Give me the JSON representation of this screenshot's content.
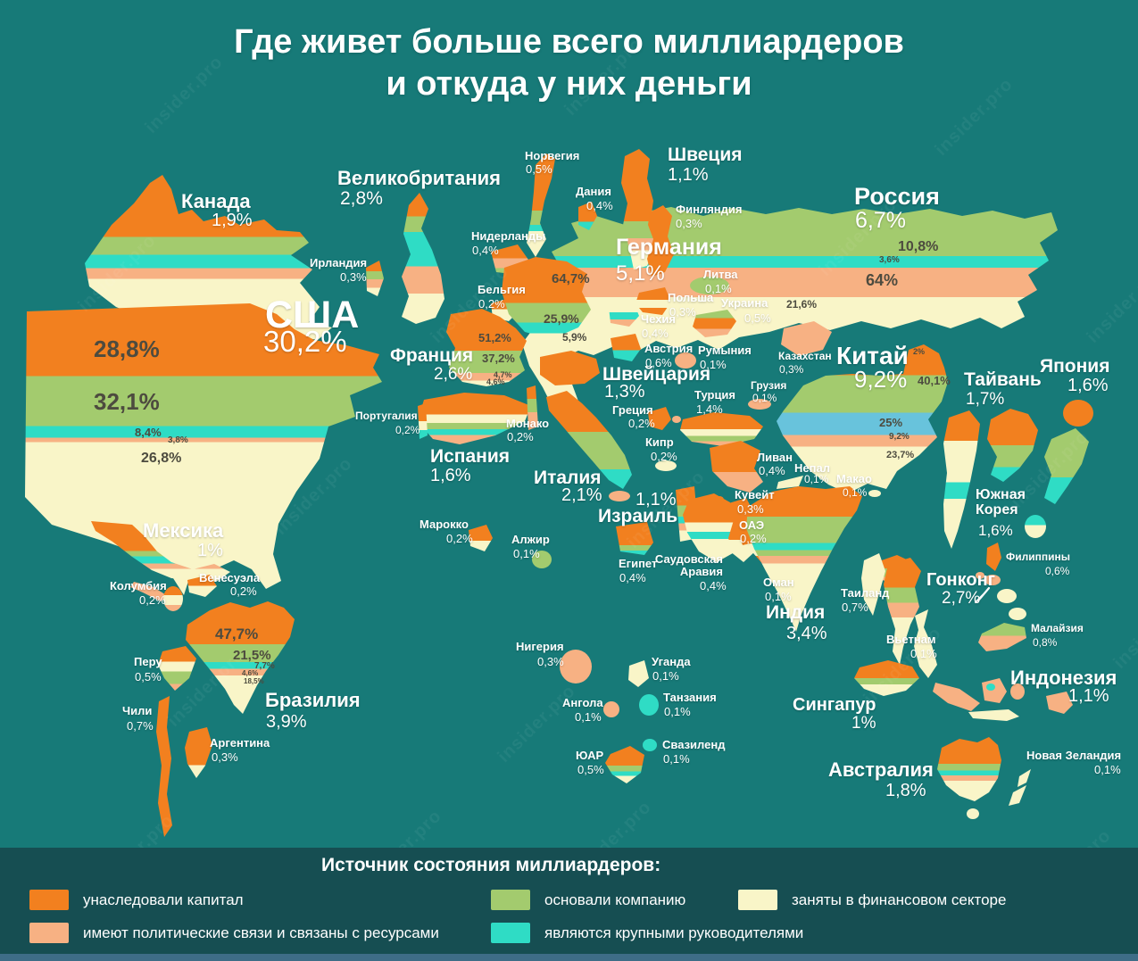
{
  "title": {
    "line1": "Где живет больше всего миллиардеров",
    "line2": "и откуда у них деньги"
  },
  "watermark": "insider.pro",
  "colors": {
    "background": "#177a78",
    "inherited": "#f2801f",
    "political": "#f7b183",
    "founded": "#a3cb6e",
    "executives": "#2fdcc5",
    "executives_blue": "#68c3dc",
    "finance": "#f9f5c8",
    "legend_band": "#164e52",
    "bottom_bar": "#3e6d87",
    "segment_text": "#4d4b3f"
  },
  "legend": {
    "title": "Источник состояния миллиардеров:",
    "items": [
      {
        "key": "inherited",
        "color": "#f2801f",
        "label": "унаследовали капитал"
      },
      {
        "key": "political",
        "color": "#f7b183",
        "label": "имеют политические связи и связаны с ресурсами"
      },
      {
        "key": "founded",
        "color": "#a3cb6e",
        "label": "основали компанию"
      },
      {
        "key": "executives",
        "color": "#2fdcc5",
        "label": "являются крупными руководителями"
      },
      {
        "key": "finance",
        "color": "#f9f5c8",
        "label": "заняты в финансовом секторе"
      }
    ]
  },
  "countries": [
    {
      "id": "canada",
      "name": "Канада",
      "value": "1,9%"
    },
    {
      "id": "usa",
      "name": "США",
      "value": "30,2%",
      "segments": [
        {
          "value": "28,8%",
          "source": "inherited"
        },
        {
          "value": "32,1%",
          "source": "founded"
        },
        {
          "value": "8,4%",
          "source": "executives"
        },
        {
          "value": "3,8%",
          "source": "political"
        },
        {
          "value": "26,8%",
          "source": "finance"
        }
      ]
    },
    {
      "id": "uk",
      "name": "Великобритания",
      "value": "2,8%"
    },
    {
      "id": "ireland",
      "name": "Ирландия",
      "value": "0,3%"
    },
    {
      "id": "norway",
      "name": "Норвегия",
      "value": "0,5%"
    },
    {
      "id": "denmark",
      "name": "Дания",
      "value": "0,4%"
    },
    {
      "id": "sweden",
      "name": "Швеция",
      "value": "1,1%"
    },
    {
      "id": "finland",
      "name": "Финляндия",
      "value": "0,3%"
    },
    {
      "id": "netherlands",
      "name": "Нидерланды",
      "value": "0,4%"
    },
    {
      "id": "belgium",
      "name": "Бельгия",
      "value": "0,2%"
    },
    {
      "id": "germany",
      "name": "Германия",
      "value": "5,1%",
      "segments": [
        {
          "value": "64,7%",
          "source": "inherited"
        },
        {
          "value": "25,9%",
          "source": "founded"
        },
        {
          "value": "5,9%",
          "source": "executives"
        }
      ]
    },
    {
      "id": "lithuania",
      "name": "Литва",
      "value": "0,1%"
    },
    {
      "id": "poland",
      "name": "Польша",
      "value": "0,3%"
    },
    {
      "id": "ukraine",
      "name": "Украина",
      "value": "0,5%"
    },
    {
      "id": "russia",
      "name": "Россия",
      "value": "6,7%",
      "segments": [
        {
          "value": "10,8%",
          "source": "founded"
        },
        {
          "value": "3,6%",
          "source": "executives"
        },
        {
          "value": "64%",
          "source": "political"
        },
        {
          "value": "21,6%",
          "source": "finance"
        }
      ]
    },
    {
      "id": "france",
      "name": "Франция",
      "value": "2,6%",
      "segments": [
        {
          "value": "51,2%",
          "source": "inherited"
        },
        {
          "value": "37,2%",
          "source": "founded"
        },
        {
          "value": "4,7%",
          "source": "political"
        },
        {
          "value": "4,6%",
          "source": "finance"
        }
      ]
    },
    {
      "id": "czech",
      "name": "Чехия",
      "value": "0,4%"
    },
    {
      "id": "austria",
      "name": "Австрия",
      "value": "0,6%"
    },
    {
      "id": "romania",
      "name": "Румыния",
      "value": "0,1%"
    },
    {
      "id": "kazakhstan",
      "name": "Казахстан",
      "value": "0,3%"
    },
    {
      "id": "china",
      "name": "Китай",
      "value": "9,2%",
      "segments": [
        {
          "value": "2%",
          "source": "inherited"
        },
        {
          "value": "40,1%",
          "source": "founded"
        },
        {
          "value": "25%",
          "source": "executives"
        },
        {
          "value": "9,2%",
          "source": "political"
        },
        {
          "value": "23,7%",
          "source": "finance"
        }
      ]
    },
    {
      "id": "japan",
      "name": "Япония",
      "value": "1,6%"
    },
    {
      "id": "taiwan",
      "name": "Тайвань",
      "value": "1,7%"
    },
    {
      "id": "switzerland",
      "name": "Швейцария",
      "value": "1,3%"
    },
    {
      "id": "turkey",
      "name": "Турция",
      "value": "1,4%"
    },
    {
      "id": "georgia",
      "name": "Грузия",
      "value": "0,1%"
    },
    {
      "id": "portugal",
      "name": "Португалия",
      "value": "0,2%"
    },
    {
      "id": "monaco",
      "name": "Монако",
      "value": "0,2%"
    },
    {
      "id": "greece",
      "name": "Греция",
      "value": "0,2%"
    },
    {
      "id": "cyprus",
      "name": "Кипр",
      "value": "0,2%"
    },
    {
      "id": "lebanon",
      "name": "Ливан",
      "value": "0,4%"
    },
    {
      "id": "nepal",
      "name": "Непал",
      "value": "0,1%"
    },
    {
      "id": "macao",
      "name": "Макао",
      "value": "0,1%"
    },
    {
      "id": "spain",
      "name": "Испания",
      "value": "1,6%"
    },
    {
      "id": "italy",
      "name": "Италия",
      "value": "2,1%"
    },
    {
      "id": "israel",
      "name": "Израиль",
      "value": "1,1%"
    },
    {
      "id": "kuwait",
      "name": "Кувейт",
      "value": "0,3%"
    },
    {
      "id": "uae",
      "name": "ОАЭ",
      "value": "0,2%"
    },
    {
      "id": "south-korea",
      "name": "Южная Корея",
      "value": "1,6%"
    },
    {
      "id": "morocco",
      "name": "Марокко",
      "value": "0,2%"
    },
    {
      "id": "algeria",
      "name": "Алжир",
      "value": "0,1%"
    },
    {
      "id": "egypt",
      "name": "Египет",
      "value": "0,4%"
    },
    {
      "id": "saudi-arabia",
      "name": "Саудовская Аравия",
      "value": "0,4%"
    },
    {
      "id": "oman",
      "name": "Оман",
      "value": "0,1%"
    },
    {
      "id": "thailand",
      "name": "Таиланд",
      "value": "0,7%"
    },
    {
      "id": "hongkong",
      "name": "Гонконг",
      "value": "2,7%"
    },
    {
      "id": "philippines",
      "name": "Филиппины",
      "value": "0,6%"
    },
    {
      "id": "mexico",
      "name": "Мексика",
      "value": "1%"
    },
    {
      "id": "colombia",
      "name": "Колумбия",
      "value": "0,2%"
    },
    {
      "id": "venezuela",
      "name": "Венесуэла",
      "value": "0,2%"
    },
    {
      "id": "india",
      "name": "Индия",
      "value": "3,4%"
    },
    {
      "id": "vietnam",
      "name": "Вьетнам",
      "value": "0,1%"
    },
    {
      "id": "malaysia",
      "name": "Малайзия",
      "value": "0,8%"
    },
    {
      "id": "peru",
      "name": "Перу",
      "value": "0,5%"
    },
    {
      "id": "nigeria",
      "name": "Нигерия",
      "value": "0,3%"
    },
    {
      "id": "uganda",
      "name": "Уганда",
      "value": "0,1%"
    },
    {
      "id": "indonesia",
      "name": "Индонезия",
      "value": "1,1%"
    },
    {
      "id": "brazil",
      "name": "Бразилия",
      "value": "3,9%",
      "segments": [
        {
          "value": "47,7%",
          "source": "inherited"
        },
        {
          "value": "21,5%",
          "source": "founded"
        },
        {
          "value": "7,7%",
          "source": "executives"
        },
        {
          "value": "4,6%",
          "source": "political"
        },
        {
          "value": "18,5%",
          "source": "finance"
        }
      ]
    },
    {
      "id": "chile",
      "name": "Чили",
      "value": "0,7%"
    },
    {
      "id": "angola",
      "name": "Ангола",
      "value": "0,1%"
    },
    {
      "id": "tanzania",
      "name": "Танзания",
      "value": "0,1%"
    },
    {
      "id": "singapore",
      "name": "Сингапур",
      "value": "1%"
    },
    {
      "id": "argentina",
      "name": "Аргентина",
      "value": "0,3%"
    },
    {
      "id": "south-africa",
      "name": "ЮАР",
      "value": "0,5%"
    },
    {
      "id": "swaziland",
      "name": "Свазиленд",
      "value": "0,1%"
    },
    {
      "id": "australia",
      "name": "Австралия",
      "value": "1,8%"
    },
    {
      "id": "new-zealand",
      "name": "Новая Зеландия",
      "value": "0,1%"
    }
  ]
}
